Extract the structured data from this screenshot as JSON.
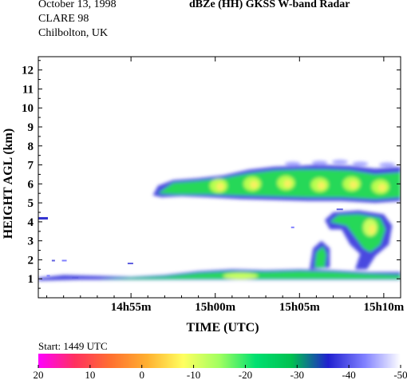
{
  "header": {
    "date": "October 13, 1998",
    "campaign": "CLARE 98",
    "location": "Chilbolton, UK",
    "title": "dBZe (HH)   GKSS  W-band Radar"
  },
  "colorbar": {
    "start_label": "Start:  1449 UTC",
    "ticks": [
      "20",
      "10",
      "0",
      "-10",
      "-20",
      "-30",
      "-40",
      "-50"
    ],
    "stops": [
      "#ff00ff",
      "#ff3060",
      "#ff7030",
      "#ffb030",
      "#ffff60",
      "#a0ff60",
      "#00e070",
      "#00c050",
      "#2020d0",
      "#8080ff",
      "#ffffff"
    ]
  },
  "chart_data": {
    "type": "heatmap",
    "title": "dBZe (HH)   GKSS  W-band Radar",
    "xlabel": "TIME (UTC)",
    "ylabel": "HEIGHT AGL (km)",
    "x_ticks": [
      "14h55m",
      "15h00m",
      "15h05m",
      "15h10m"
    ],
    "x_tick_minutes": [
      895,
      900,
      905,
      910
    ],
    "xlim": [
      889.5,
      911
    ],
    "y_ticks": [
      1,
      2,
      3,
      4,
      5,
      6,
      7,
      8,
      9,
      10,
      11,
      12
    ],
    "ylim": [
      0,
      12.7
    ],
    "grid": false,
    "colorscale_range_dbz": [
      20,
      -50
    ],
    "features": [
      {
        "name": "upper cloud layer",
        "x_start": 896.3,
        "x_end": 911,
        "y_bottom": 5.0,
        "y_top": 7.0
      },
      {
        "name": "lower cloud layer",
        "x_start": 889.5,
        "x_end": 911,
        "y_bottom": 0.9,
        "y_top": 1.5
      },
      {
        "name": "precipitation shaft",
        "x_start": 906.5,
        "x_end": 910.5,
        "y_bottom": 1.3,
        "y_top": 4.6
      }
    ]
  }
}
